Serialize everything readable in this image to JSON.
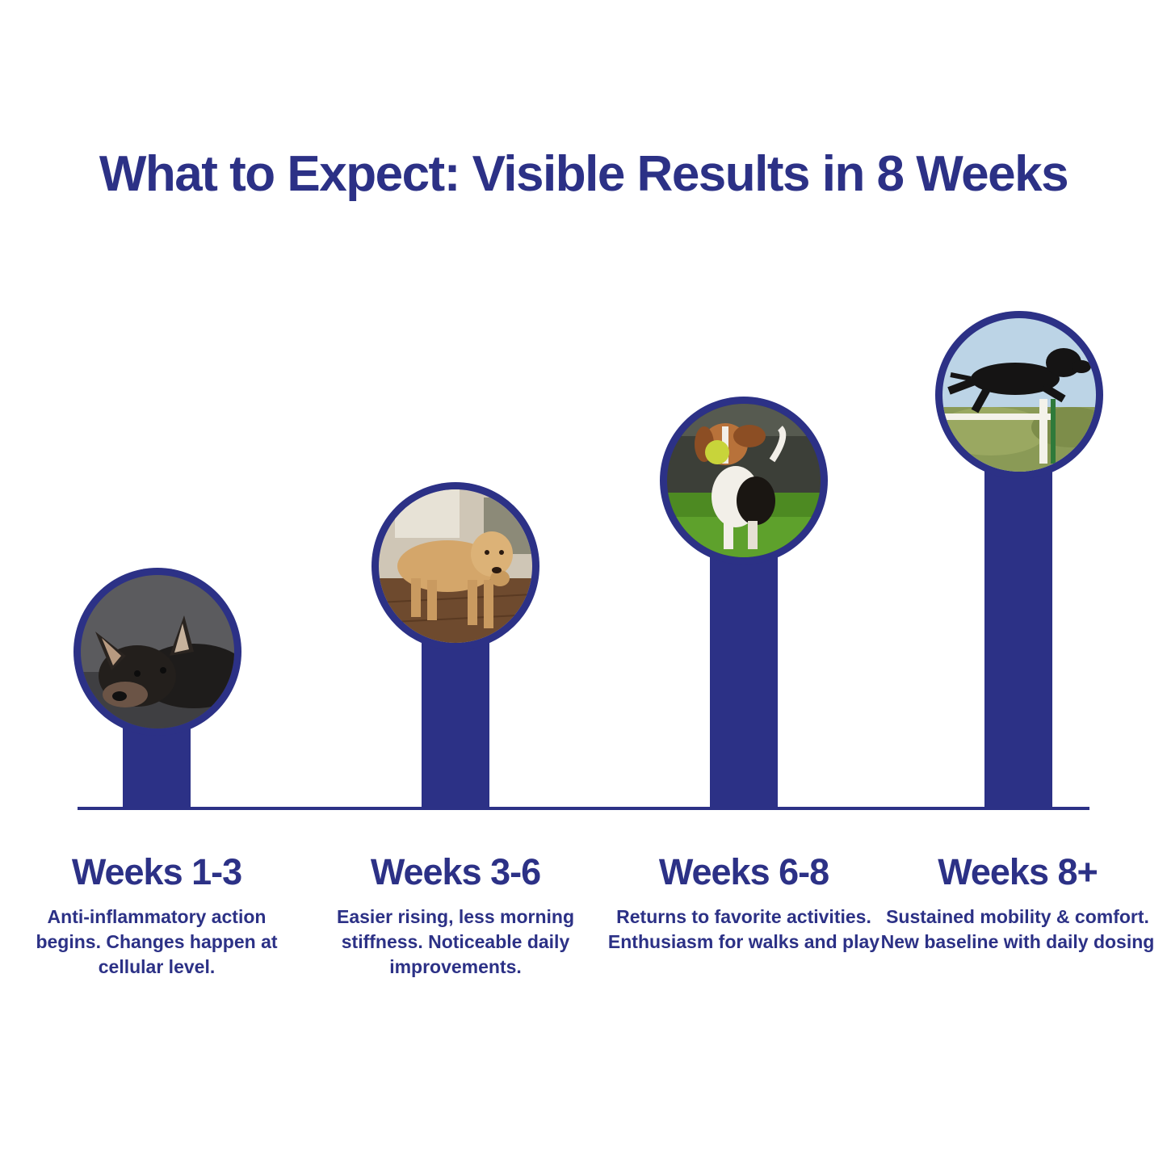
{
  "title": "What to Expect: Visible Results in 8 Weeks",
  "colors": {
    "primary": "#2c3186",
    "background": "#ffffff"
  },
  "stages": [
    {
      "label": "Weeks 1-3",
      "description": "Anti-inflammatory action begins. Changes happen at cellular level.",
      "image": "tired-dog-lying-down"
    },
    {
      "label": "Weeks 3-6",
      "description": "Easier rising, less morning stiffness. Noticeable daily improvements.",
      "image": "golden-retriever-standing"
    },
    {
      "label": "Weeks 6-8",
      "description": "Returns to favorite activities. Enthusiasm for walks and play",
      "image": "beagle-running-with-ball"
    },
    {
      "label": "Weeks 8+",
      "description": "Sustained mobility & comfort. New baseline with daily dosing",
      "image": "black-lab-jumping-hurdle"
    }
  ]
}
